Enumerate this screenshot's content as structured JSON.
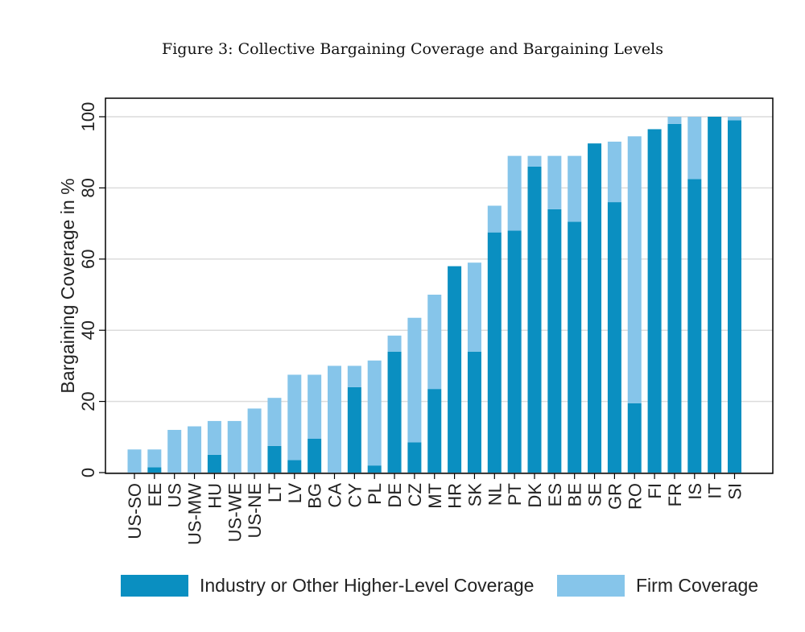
{
  "title": "Figure 3: Collective Bargaining Coverage and Bargaining Levels",
  "colors": {
    "industry": "#0a8fc1",
    "firm": "#86c5ea",
    "grid": "#dcdcdc",
    "axis": "#000000"
  },
  "chart_data": {
    "type": "bar",
    "stacked": true,
    "title": "Figure 3: Collective Bargaining Coverage and Bargaining Levels",
    "xlabel": "",
    "ylabel": "Bargaining Coverage in %",
    "ylim": [
      0,
      100
    ],
    "yticks": [
      0,
      20,
      40,
      60,
      80,
      100
    ],
    "grid": true,
    "legend_position": "bottom",
    "categories": [
      "US-SO",
      "EE",
      "US",
      "US-MW",
      "HU",
      "US-WE",
      "US-NE",
      "LT",
      "LV",
      "BG",
      "CA",
      "CY",
      "PL",
      "DE",
      "CZ",
      "MT",
      "HR",
      "SK",
      "NL",
      "PT",
      "DK",
      "ES",
      "BE",
      "SE",
      "GR",
      "RO",
      "FI",
      "FR",
      "IS",
      "IT",
      "SI"
    ],
    "series": [
      {
        "name": "Industry or Other Higher-Level Coverage",
        "values": [
          0,
          1.5,
          0,
          0,
          5,
          0,
          0,
          7.5,
          3.5,
          9.5,
          0,
          24,
          2,
          34,
          8.5,
          23.5,
          58,
          34,
          67.5,
          68,
          86,
          74,
          70.5,
          92.5,
          76,
          19.5,
          96.5,
          98,
          82.5,
          100,
          99
        ]
      },
      {
        "name": "Firm Coverage",
        "values": [
          6.5,
          5,
          12,
          13,
          9.5,
          14.5,
          18,
          13.5,
          24,
          18,
          30,
          6,
          29.5,
          4.5,
          35,
          26.5,
          0,
          25,
          7.5,
          21,
          3,
          15,
          18.5,
          0,
          17,
          75,
          0,
          2,
          17.5,
          0,
          1
        ]
      }
    ]
  }
}
